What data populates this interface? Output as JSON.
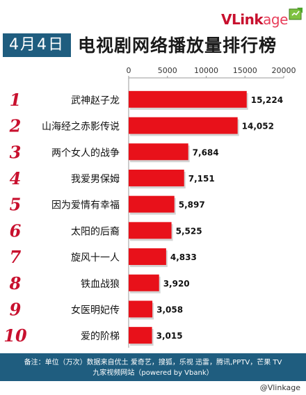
{
  "header": {
    "date": "4月4日",
    "title": "电视剧网络播放量排行榜",
    "logo": {
      "text_bold": "VLink",
      "text_light": "age",
      "icon": "vlinkage-logo-icon"
    }
  },
  "chart_data": {
    "type": "bar",
    "orientation": "horizontal",
    "categories": [
      "武神赵子龙",
      "山海经之赤影传说",
      "两个女人的战争",
      "我爱男保姆",
      "因为爱情有幸福",
      "太阳的后裔",
      "旋风十一人",
      "铁血战狼",
      "女医明妃传",
      "爱的阶梯"
    ],
    "ranks": [
      "1",
      "2",
      "3",
      "4",
      "5",
      "6",
      "7",
      "8",
      "9",
      "10"
    ],
    "values": [
      15224,
      14052,
      7684,
      7151,
      5897,
      5525,
      4833,
      3920,
      3058,
      3015
    ],
    "value_labels": [
      "15,224",
      "14,052",
      "7,684",
      "7,151",
      "5,897",
      "5,525",
      "4,833",
      "3,920",
      "3,058",
      "3,015"
    ],
    "xlim": [
      0,
      20000
    ],
    "xticks": [
      "0",
      "5000",
      "10000",
      "15000",
      "20000"
    ],
    "xtick_values": [
      0,
      5000,
      10000,
      15000,
      20000
    ],
    "axis_position": "top",
    "grid": false,
    "colors": {
      "bar": "#e8111a",
      "rank": "#c8102e",
      "axis": "#999999"
    }
  },
  "footer": {
    "line1": "备注：单位（万次）数据来自优土 爱奇艺，搜狐，乐视  迅雷，腾讯,PPTV，芒果 TV",
    "line2": "九家视频网站（powered by Vbank）"
  },
  "watermark": "@Vlinkage",
  "colors": {
    "brand_blue": "#1f5d7f",
    "brand_red": "#c8102e"
  }
}
